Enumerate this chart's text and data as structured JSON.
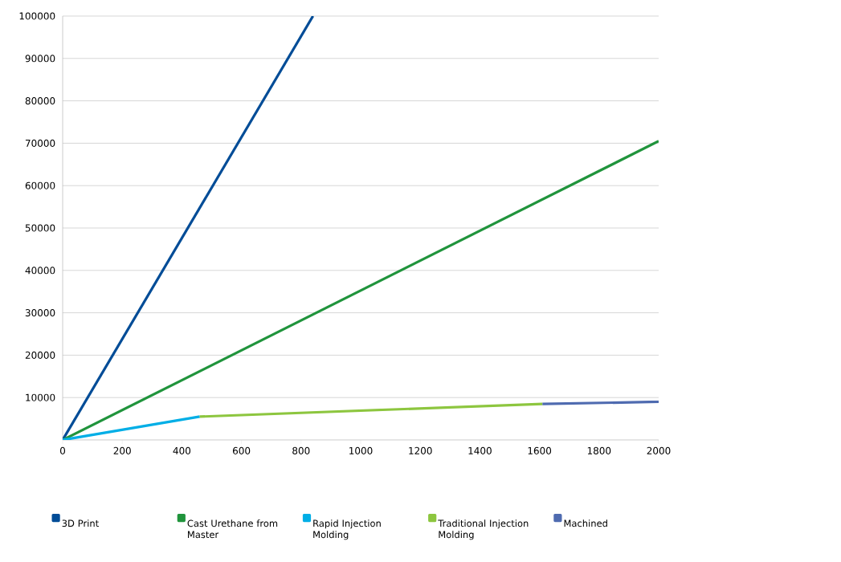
{
  "chart_data": {
    "type": "line",
    "xlim": [
      0,
      2000
    ],
    "ylim": [
      0,
      100000
    ],
    "xticks": [
      0,
      200,
      400,
      600,
      800,
      1000,
      1200,
      1400,
      1600,
      1800,
      2000
    ],
    "yticks": [
      10000,
      20000,
      30000,
      40000,
      50000,
      60000,
      70000,
      80000,
      90000,
      100000
    ],
    "grid": "y",
    "legend": "bottom",
    "line_style": "solid",
    "series": [
      {
        "name": "3D Print",
        "color": "#004c97",
        "x": [
          0,
          840
        ],
        "values": [
          0,
          100000
        ]
      },
      {
        "name": "Cast Urethane from Master",
        "color": "#20943c",
        "x": [
          0,
          2000
        ],
        "values": [
          0,
          70500
        ]
      },
      {
        "name": "Rapid Injection Molding",
        "color": "#00aee6",
        "x": [
          0,
          460
        ],
        "values": [
          0,
          5500
        ]
      },
      {
        "name": "Traditional Injection Molding",
        "color": "#8dc63f",
        "x": [
          460,
          1610
        ],
        "values": [
          5500,
          8500
        ]
      },
      {
        "name": "Machined",
        "color": "#4f6bb0",
        "x": [
          1610,
          2000
        ],
        "values": [
          8500,
          9000
        ]
      }
    ]
  }
}
